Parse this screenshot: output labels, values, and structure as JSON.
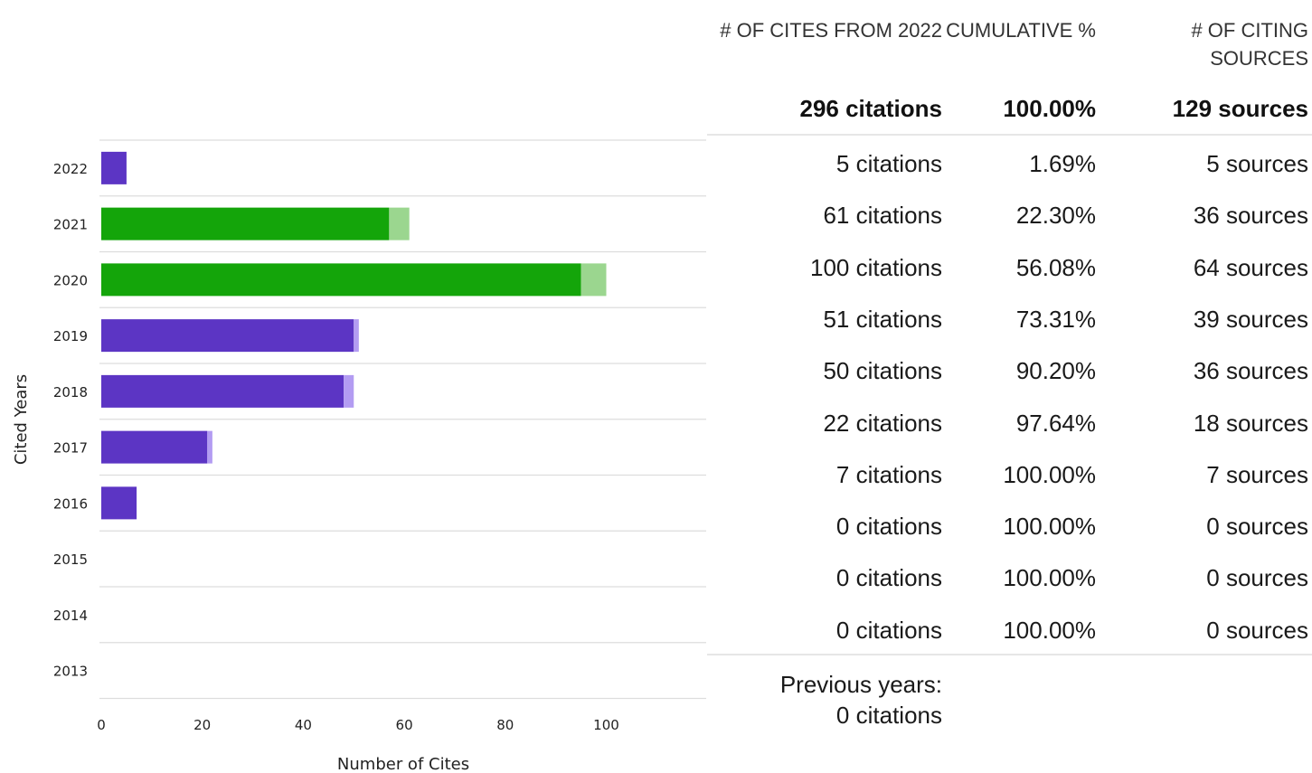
{
  "chart_data": {
    "type": "bar",
    "orientation": "horizontal",
    "stacked": true,
    "categories": [
      "2022",
      "2021",
      "2020",
      "2019",
      "2018",
      "2017",
      "2016",
      "2015",
      "2014",
      "2013"
    ],
    "series": [
      {
        "values": [
          5,
          57,
          95,
          50,
          48,
          21,
          7,
          0,
          0,
          0
        ]
      },
      {
        "values": [
          0,
          4,
          5,
          1,
          2,
          1,
          0,
          0,
          0,
          0
        ]
      }
    ],
    "colors": {
      "primary": [
        "#5c35c4",
        "#14a50a",
        "#14a50a",
        "#5c35c4",
        "#5c35c4",
        "#5c35c4",
        "#5c35c4",
        "#5c35c4",
        "#5c35c4",
        "#5c35c4"
      ],
      "secondary": [
        "#b39cf2",
        "#9bd68f",
        "#9bd68f",
        "#b39cf2",
        "#b39cf2",
        "#b39cf2",
        "#b39cf2",
        "#b39cf2",
        "#b39cf2",
        "#b39cf2"
      ],
      "grid": "#dddddd"
    },
    "xlabel": "Number of Cites",
    "ylabel": "Cited Years",
    "xticks": [
      "0",
      "20",
      "40",
      "60",
      "80",
      "100"
    ],
    "xlim": [
      0,
      120
    ],
    "grid": true
  },
  "table": {
    "headers": {
      "cites": "# OF CITES FROM 2022",
      "cumulative": "CUMULATIVE %",
      "sources": "# OF CITING SOURCES"
    },
    "total": {
      "cites": "296 citations",
      "cumulative": "100.00%",
      "sources": "129 sources"
    },
    "rows": [
      {
        "cites": "5 citations",
        "cumulative": "1.69%",
        "sources": "5 sources"
      },
      {
        "cites": "61 citations",
        "cumulative": "22.30%",
        "sources": "36 sources"
      },
      {
        "cites": "100 citations",
        "cumulative": "56.08%",
        "sources": "64 sources"
      },
      {
        "cites": "51 citations",
        "cumulative": "73.31%",
        "sources": "39 sources"
      },
      {
        "cites": "50 citations",
        "cumulative": "90.20%",
        "sources": "36 sources"
      },
      {
        "cites": "22 citations",
        "cumulative": "97.64%",
        "sources": "18 sources"
      },
      {
        "cites": "7 citations",
        "cumulative": "100.00%",
        "sources": "7 sources"
      },
      {
        "cites": "0 citations",
        "cumulative": "100.00%",
        "sources": "0 sources"
      },
      {
        "cites": "0 citations",
        "cumulative": "100.00%",
        "sources": "0 sources"
      },
      {
        "cites": "0 citations",
        "cumulative": "100.00%",
        "sources": "0 sources"
      }
    ],
    "previous_years": {
      "label": "Previous years:",
      "value": "0 citations"
    }
  }
}
